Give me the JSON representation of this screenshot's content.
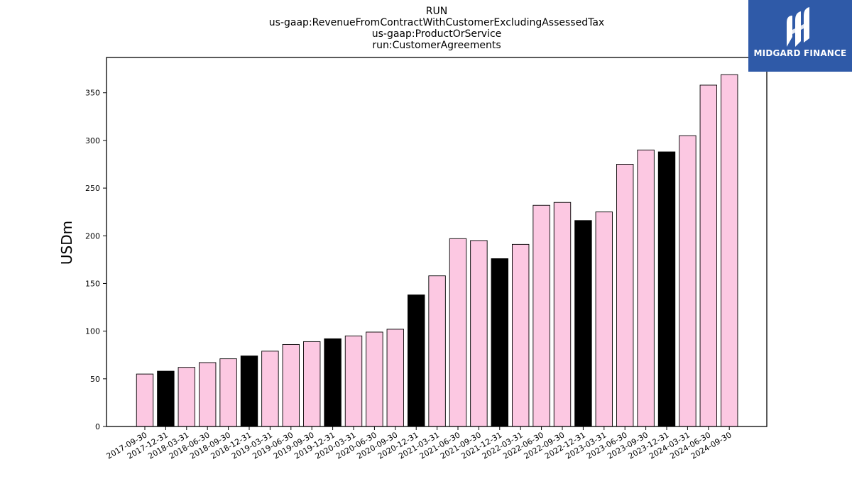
{
  "chart_data": {
    "type": "bar",
    "title_lines": [
      "RUN",
      "us-gaap:RevenueFromContractWithCustomerExcludingAssessedTax",
      "us-gaap:ProductOrService",
      "run:CustomerAgreements"
    ],
    "ylabel": "USDm",
    "xlabel": "",
    "ylim": [
      0,
      387
    ],
    "yticks": [
      0,
      50,
      100,
      150,
      200,
      250,
      300,
      350
    ],
    "categories": [
      "2017-09-30",
      "2017-12-31",
      "2018-03-31",
      "2018-06-30",
      "2018-09-30",
      "2018-12-31",
      "2019-03-31",
      "2019-06-30",
      "2019-09-30",
      "2019-12-31",
      "2020-03-31",
      "2020-06-30",
      "2020-09-30",
      "2020-12-31",
      "2021-03-31",
      "2021-06-30",
      "2021-09-30",
      "2021-12-31",
      "2022-03-31",
      "2022-06-30",
      "2022-09-30",
      "2022-12-31",
      "2023-03-31",
      "2023-06-30",
      "2023-09-30",
      "2023-12-31",
      "2024-03-31",
      "2024-06-30",
      "2024-09-30"
    ],
    "values": [
      55,
      58,
      62,
      67,
      71,
      74,
      79,
      86,
      89,
      92,
      95,
      99,
      102,
      138,
      158,
      197,
      195,
      176,
      191,
      232,
      235,
      216,
      225,
      275,
      290,
      288,
      305,
      358,
      369
    ],
    "highlight": [
      false,
      true,
      false,
      false,
      false,
      true,
      false,
      false,
      false,
      true,
      false,
      false,
      false,
      true,
      false,
      false,
      false,
      true,
      false,
      false,
      false,
      true,
      false,
      false,
      false,
      true,
      false,
      false,
      false
    ],
    "colors": {
      "default": "#fcc8e2",
      "highlight": "#000000",
      "edge": "#000000"
    },
    "grid": false,
    "legend": "none"
  },
  "logo": {
    "text": "MIDGARD FINANCE",
    "background": "#2f5aa8",
    "icon": "midgard-finance-logo-icon"
  }
}
